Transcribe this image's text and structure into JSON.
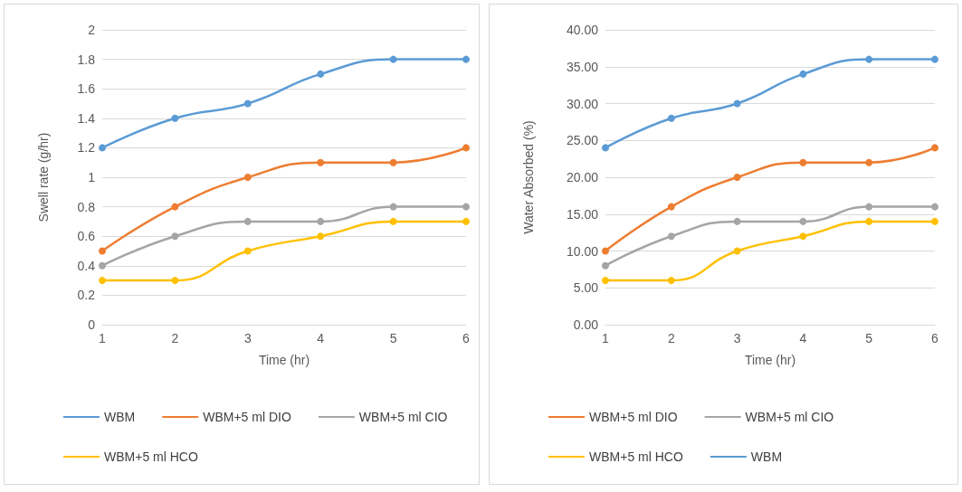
{
  "chart_data": [
    {
      "type": "line",
      "xlabel": "Time (hr)",
      "ylabel": "Swell rate (g/hr)",
      "categories": [
        "1",
        "2",
        "3",
        "4",
        "5",
        "6"
      ],
      "series": [
        {
          "name": "WBM",
          "color": "#5b9bd5",
          "values": [
            1.2,
            1.4,
            1.5,
            1.7,
            1.8,
            1.8
          ]
        },
        {
          "name": "WBM+5 ml DIO",
          "color": "#ed7d31",
          "values": [
            0.5,
            0.8,
            1.0,
            1.1,
            1.1,
            1.2
          ]
        },
        {
          "name": "WBM+5 ml CIO",
          "color": "#a5a5a5",
          "values": [
            0.4,
            0.6,
            0.7,
            0.7,
            0.8,
            0.8
          ]
        },
        {
          "name": "WBM+5 ml HCO",
          "color": "#ffc000",
          "values": [
            0.3,
            0.3,
            0.5,
            0.6,
            0.7,
            0.7
          ]
        }
      ],
      "ylim": [
        0,
        2
      ],
      "yticks": [
        0,
        0.2,
        0.4,
        0.6,
        0.8,
        1,
        1.2,
        1.4,
        1.6,
        1.8,
        2
      ],
      "grid": "y",
      "legend": "bottom",
      "marker": "circle"
    },
    {
      "type": "line",
      "xlabel": "Time (hr)",
      "ylabel": "Water Absorbed (%)",
      "categories": [
        "1",
        "2",
        "3",
        "4",
        "5",
        "6"
      ],
      "series": [
        {
          "name": "WBM+5 ml DIO",
          "color": "#ed7d31",
          "values": [
            10,
            16,
            20,
            22,
            22,
            24
          ]
        },
        {
          "name": "WBM+5 ml CIO",
          "color": "#a5a5a5",
          "values": [
            8,
            12,
            14,
            14,
            16,
            16
          ]
        },
        {
          "name": "WBM+5 ml HCO",
          "color": "#ffc000",
          "values": [
            6,
            6,
            10,
            12,
            14,
            14
          ]
        },
        {
          "name": "WBM",
          "color": "#5b9bd5",
          "values": [
            24,
            28,
            30,
            34,
            36,
            36
          ]
        }
      ],
      "ylim": [
        0,
        40
      ],
      "yticks": [
        {
          "value": 0,
          "label": "0.00"
        },
        {
          "value": 5,
          "label": "5.00"
        },
        {
          "value": 10,
          "label": "10.00"
        },
        {
          "value": 15,
          "label": "15.00"
        },
        {
          "value": 20,
          "label": "20.00"
        },
        {
          "value": 25,
          "label": "25.00"
        },
        {
          "value": 30,
          "label": "30.00"
        },
        {
          "value": 35,
          "label": "35.00"
        },
        {
          "value": 40,
          "label": "40.00"
        }
      ],
      "grid": "y",
      "legend": "bottom",
      "marker": "circle"
    }
  ]
}
